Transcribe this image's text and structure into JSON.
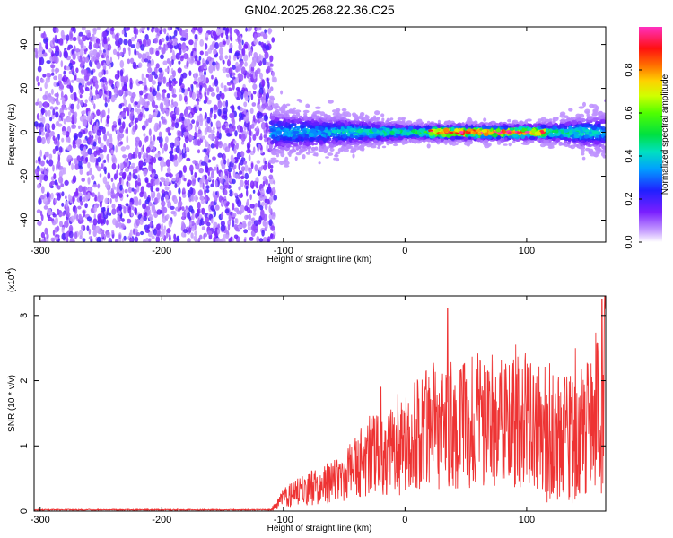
{
  "title": "GN04.2025.268.22.36.C25",
  "chart_data": [
    {
      "type": "heatmap",
      "xlabel": "Height of straight line (km)",
      "ylabel": "Frequency (Hz)",
      "xlim": [
        -305,
        165
      ],
      "ylim": [
        -50,
        48
      ],
      "xticks": [
        -300,
        -200,
        -100,
        0,
        100
      ],
      "yticks": [
        -40,
        -20,
        0,
        20,
        40
      ],
      "colorbar": {
        "label": "Normalized spectral amplitude",
        "range": [
          0.0,
          1.0
        ],
        "ticks": [
          "0.0",
          "0.2",
          "0.4",
          "0.6",
          "0.8"
        ]
      },
      "description": "Noise across all frequencies for heights below -110 km; narrow signal band centred at 0 Hz from -110 km to 165 km, strongest (~1.0) between 20 and 115 km."
    },
    {
      "type": "line",
      "xlabel": "Height of straight line (km)",
      "ylabel": "SNR (10 * v/v)",
      "scale_label": "(x10^4)",
      "scale_base": "(x10",
      "scale_exp": "4",
      "scale_close": ")",
      "xlim": [
        -305,
        165
      ],
      "ylim": [
        0,
        3.3
      ],
      "xticks": [
        -300,
        -200,
        -100,
        0,
        100
      ],
      "yticks": [
        0,
        1,
        2,
        3
      ],
      "series": [
        {
          "name": "SNR",
          "color": "#ee3333",
          "x": [
            -305,
            -200,
            -110,
            -100,
            -80,
            -60,
            -40,
            -20,
            0,
            20,
            35,
            40,
            60,
            80,
            100,
            115,
            130,
            150,
            160,
            165
          ],
          "y": [
            0.02,
            0.02,
            0.02,
            0.2,
            0.35,
            0.45,
            0.7,
            0.9,
            1.0,
            1.3,
            1.4,
            1.25,
            1.4,
            1.35,
            1.4,
            1.3,
            1.1,
            1.2,
            1.6,
            2.0
          ],
          "peaks": [
            [
              -20,
              1.9
            ],
            [
              35,
              3.1
            ],
            [
              140,
              2.5
            ],
            [
              162,
              3.25
            ]
          ]
        }
      ]
    }
  ]
}
